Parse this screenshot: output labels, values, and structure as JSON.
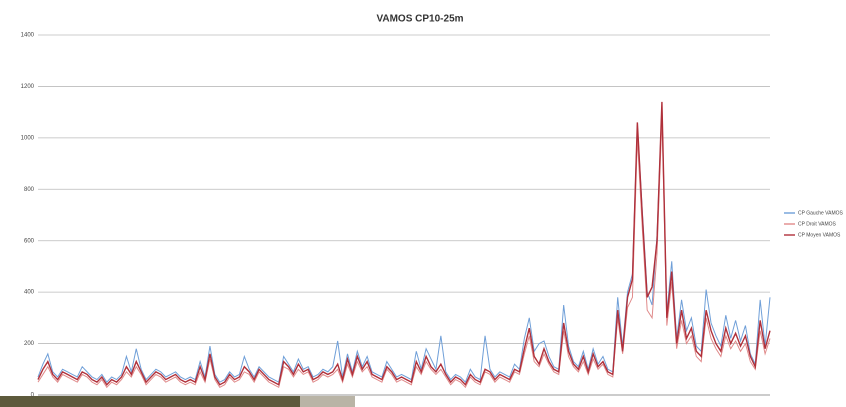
{
  "chart_data": {
    "type": "line",
    "title": "VAMOS CP10-25m",
    "ylim": [
      0,
      1400
    ],
    "yticks": [
      0,
      200,
      400,
      600,
      800,
      1000,
      1200,
      1400
    ],
    "grid": true,
    "legend": "right",
    "series": [
      {
        "name": "CP Gauche VAMOS",
        "color": "#6f9fd8",
        "values": [
          70,
          120,
          160,
          90,
          70,
          100,
          90,
          80,
          70,
          110,
          90,
          70,
          60,
          80,
          50,
          70,
          60,
          80,
          150,
          90,
          180,
          100,
          60,
          80,
          100,
          90,
          70,
          80,
          90,
          70,
          60,
          70,
          60,
          130,
          70,
          190,
          80,
          50,
          60,
          90,
          70,
          80,
          150,
          100,
          70,
          110,
          90,
          70,
          60,
          50,
          150,
          120,
          90,
          140,
          100,
          110,
          70,
          80,
          100,
          90,
          110,
          210,
          70,
          160,
          90,
          170,
          110,
          150,
          90,
          80,
          70,
          130,
          100,
          70,
          80,
          70,
          60,
          170,
          100,
          180,
          140,
          100,
          230,
          90,
          60,
          80,
          70,
          50,
          100,
          70,
          60,
          230,
          100,
          70,
          90,
          80,
          70,
          120,
          100,
          220,
          300,
          170,
          200,
          210,
          150,
          110,
          100,
          350,
          190,
          130,
          110,
          170,
          100,
          180,
          120,
          150,
          100,
          90,
          380,
          190,
          400,
          470,
          1050,
          720,
          400,
          350,
          620,
          1120,
          320,
          520,
          220,
          370,
          250,
          300,
          190,
          170,
          410,
          280,
          230,
          190,
          310,
          220,
          290,
          210,
          270,
          160,
          120,
          370,
          190,
          380
        ]
      },
      {
        "name": "CP Droit VAMOS",
        "color": "#e08a8a",
        "values": [
          50,
          80,
          110,
          70,
          50,
          80,
          70,
          60,
          50,
          80,
          70,
          50,
          40,
          60,
          30,
          50,
          40,
          60,
          90,
          70,
          110,
          80,
          40,
          60,
          80,
          70,
          50,
          60,
          70,
          50,
          40,
          50,
          40,
          90,
          50,
          140,
          60,
          30,
          40,
          70,
          50,
          60,
          90,
          80,
          50,
          90,
          70,
          50,
          40,
          30,
          110,
          100,
          70,
          100,
          80,
          90,
          50,
          60,
          80,
          70,
          80,
          100,
          50,
          120,
          70,
          130,
          90,
          110,
          70,
          60,
          50,
          100,
          80,
          50,
          60,
          50,
          40,
          110,
          80,
          130,
          100,
          80,
          100,
          70,
          40,
          60,
          50,
          30,
          70,
          50,
          40,
          90,
          80,
          50,
          70,
          60,
          50,
          90,
          80,
          160,
          230,
          130,
          110,
          160,
          120,
          90,
          80,
          250,
          150,
          110,
          90,
          130,
          80,
          140,
          100,
          120,
          80,
          70,
          300,
          160,
          340,
          380,
          1000,
          650,
          330,
          300,
          550,
          1080,
          270,
          440,
          180,
          290,
          200,
          230,
          150,
          130,
          300,
          220,
          180,
          150,
          230,
          180,
          210,
          170,
          200,
          130,
          100,
          250,
          160,
          220
        ]
      },
      {
        "name": "CP Moyen VAMOS",
        "color": "#b0303a",
        "values": [
          60,
          100,
          130,
          80,
          60,
          90,
          80,
          70,
          60,
          90,
          80,
          60,
          50,
          70,
          40,
          60,
          50,
          70,
          110,
          80,
          130,
          90,
          50,
          70,
          90,
          80,
          60,
          70,
          80,
          60,
          50,
          60,
          50,
          110,
          60,
          160,
          70,
          40,
          50,
          80,
          60,
          70,
          110,
          90,
          60,
          100,
          80,
          60,
          50,
          40,
          130,
          110,
          80,
          120,
          90,
          100,
          60,
          70,
          90,
          80,
          90,
          120,
          60,
          140,
          80,
          150,
          100,
          130,
          80,
          70,
          60,
          110,
          90,
          60,
          70,
          60,
          50,
          130,
          90,
          150,
          110,
          90,
          120,
          80,
          50,
          70,
          60,
          40,
          80,
          60,
          50,
          100,
          90,
          60,
          80,
          70,
          60,
          100,
          90,
          180,
          260,
          150,
          120,
          180,
          130,
          100,
          90,
          280,
          170,
          120,
          100,
          150,
          90,
          160,
          110,
          130,
          90,
          80,
          330,
          170,
          380,
          450,
          1060,
          700,
          380,
          420,
          600,
          1140,
          300,
          480,
          200,
          330,
          220,
          260,
          170,
          150,
          330,
          250,
          200,
          170,
          260,
          200,
          240,
          190,
          230,
          150,
          110,
          290,
          180,
          250
        ]
      }
    ]
  }
}
